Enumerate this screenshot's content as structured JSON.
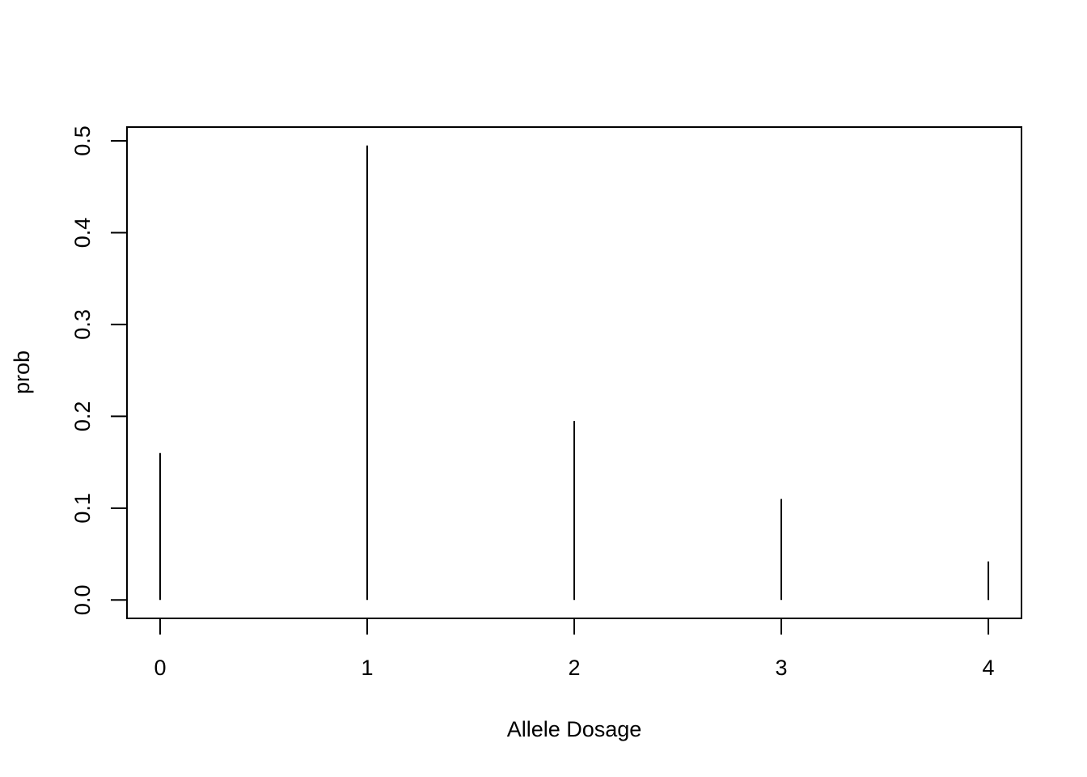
{
  "chart_data": {
    "type": "bar",
    "style": "histogram-lines",
    "x": [
      0,
      1,
      2,
      3,
      4
    ],
    "values": [
      0.16,
      0.495,
      0.195,
      0.11,
      0.042
    ],
    "xlabel": "Allele Dosage",
    "ylabel": "prob",
    "xlim": [
      -0.16,
      4.16
    ],
    "ylim": [
      -0.02,
      0.515
    ],
    "x_ticks": [
      "0",
      "1",
      "2",
      "3",
      "4"
    ],
    "y_ticks": [
      "0.0",
      "0.1",
      "0.2",
      "0.3",
      "0.4",
      "0.5"
    ],
    "grid": false,
    "line_color": "#000000"
  }
}
